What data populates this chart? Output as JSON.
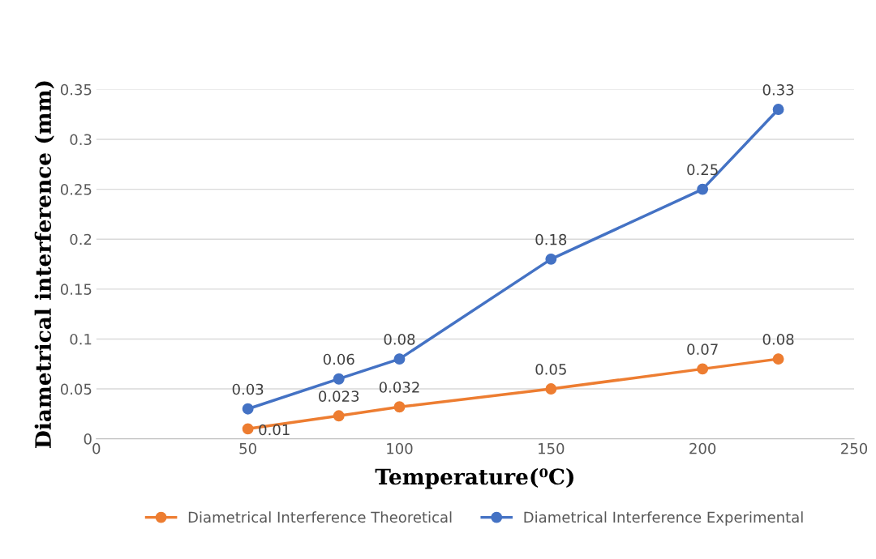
{
  "chart_data": {
    "type": "line",
    "xlabel": "Temperature(⁰C)",
    "ylabel": "Diametrical interference (mm)",
    "x": [
      50,
      80,
      100,
      150,
      200,
      225
    ],
    "series": [
      {
        "name": "Diametrical Interference Theoretical",
        "color": "#ed7d31",
        "values": [
          0.01,
          0.023,
          0.032,
          0.05,
          0.07,
          0.08
        ]
      },
      {
        "name": "Diametrical Interference Experimental",
        "color": "#4472c4",
        "values": [
          0.03,
          0.06,
          0.08,
          0.18,
          0.25,
          0.33
        ]
      }
    ],
    "xlim": [
      0,
      250
    ],
    "xticks": [
      0,
      50,
      100,
      150,
      200,
      250
    ],
    "ylim": [
      0,
      0.35
    ],
    "yticks": [
      0,
      0.05,
      0.1,
      0.15,
      0.2,
      0.25,
      0.3,
      0.35
    ],
    "grid": "y",
    "legend": "bottom",
    "marker": "circle",
    "line_style": "solid",
    "data_labels": true
  }
}
